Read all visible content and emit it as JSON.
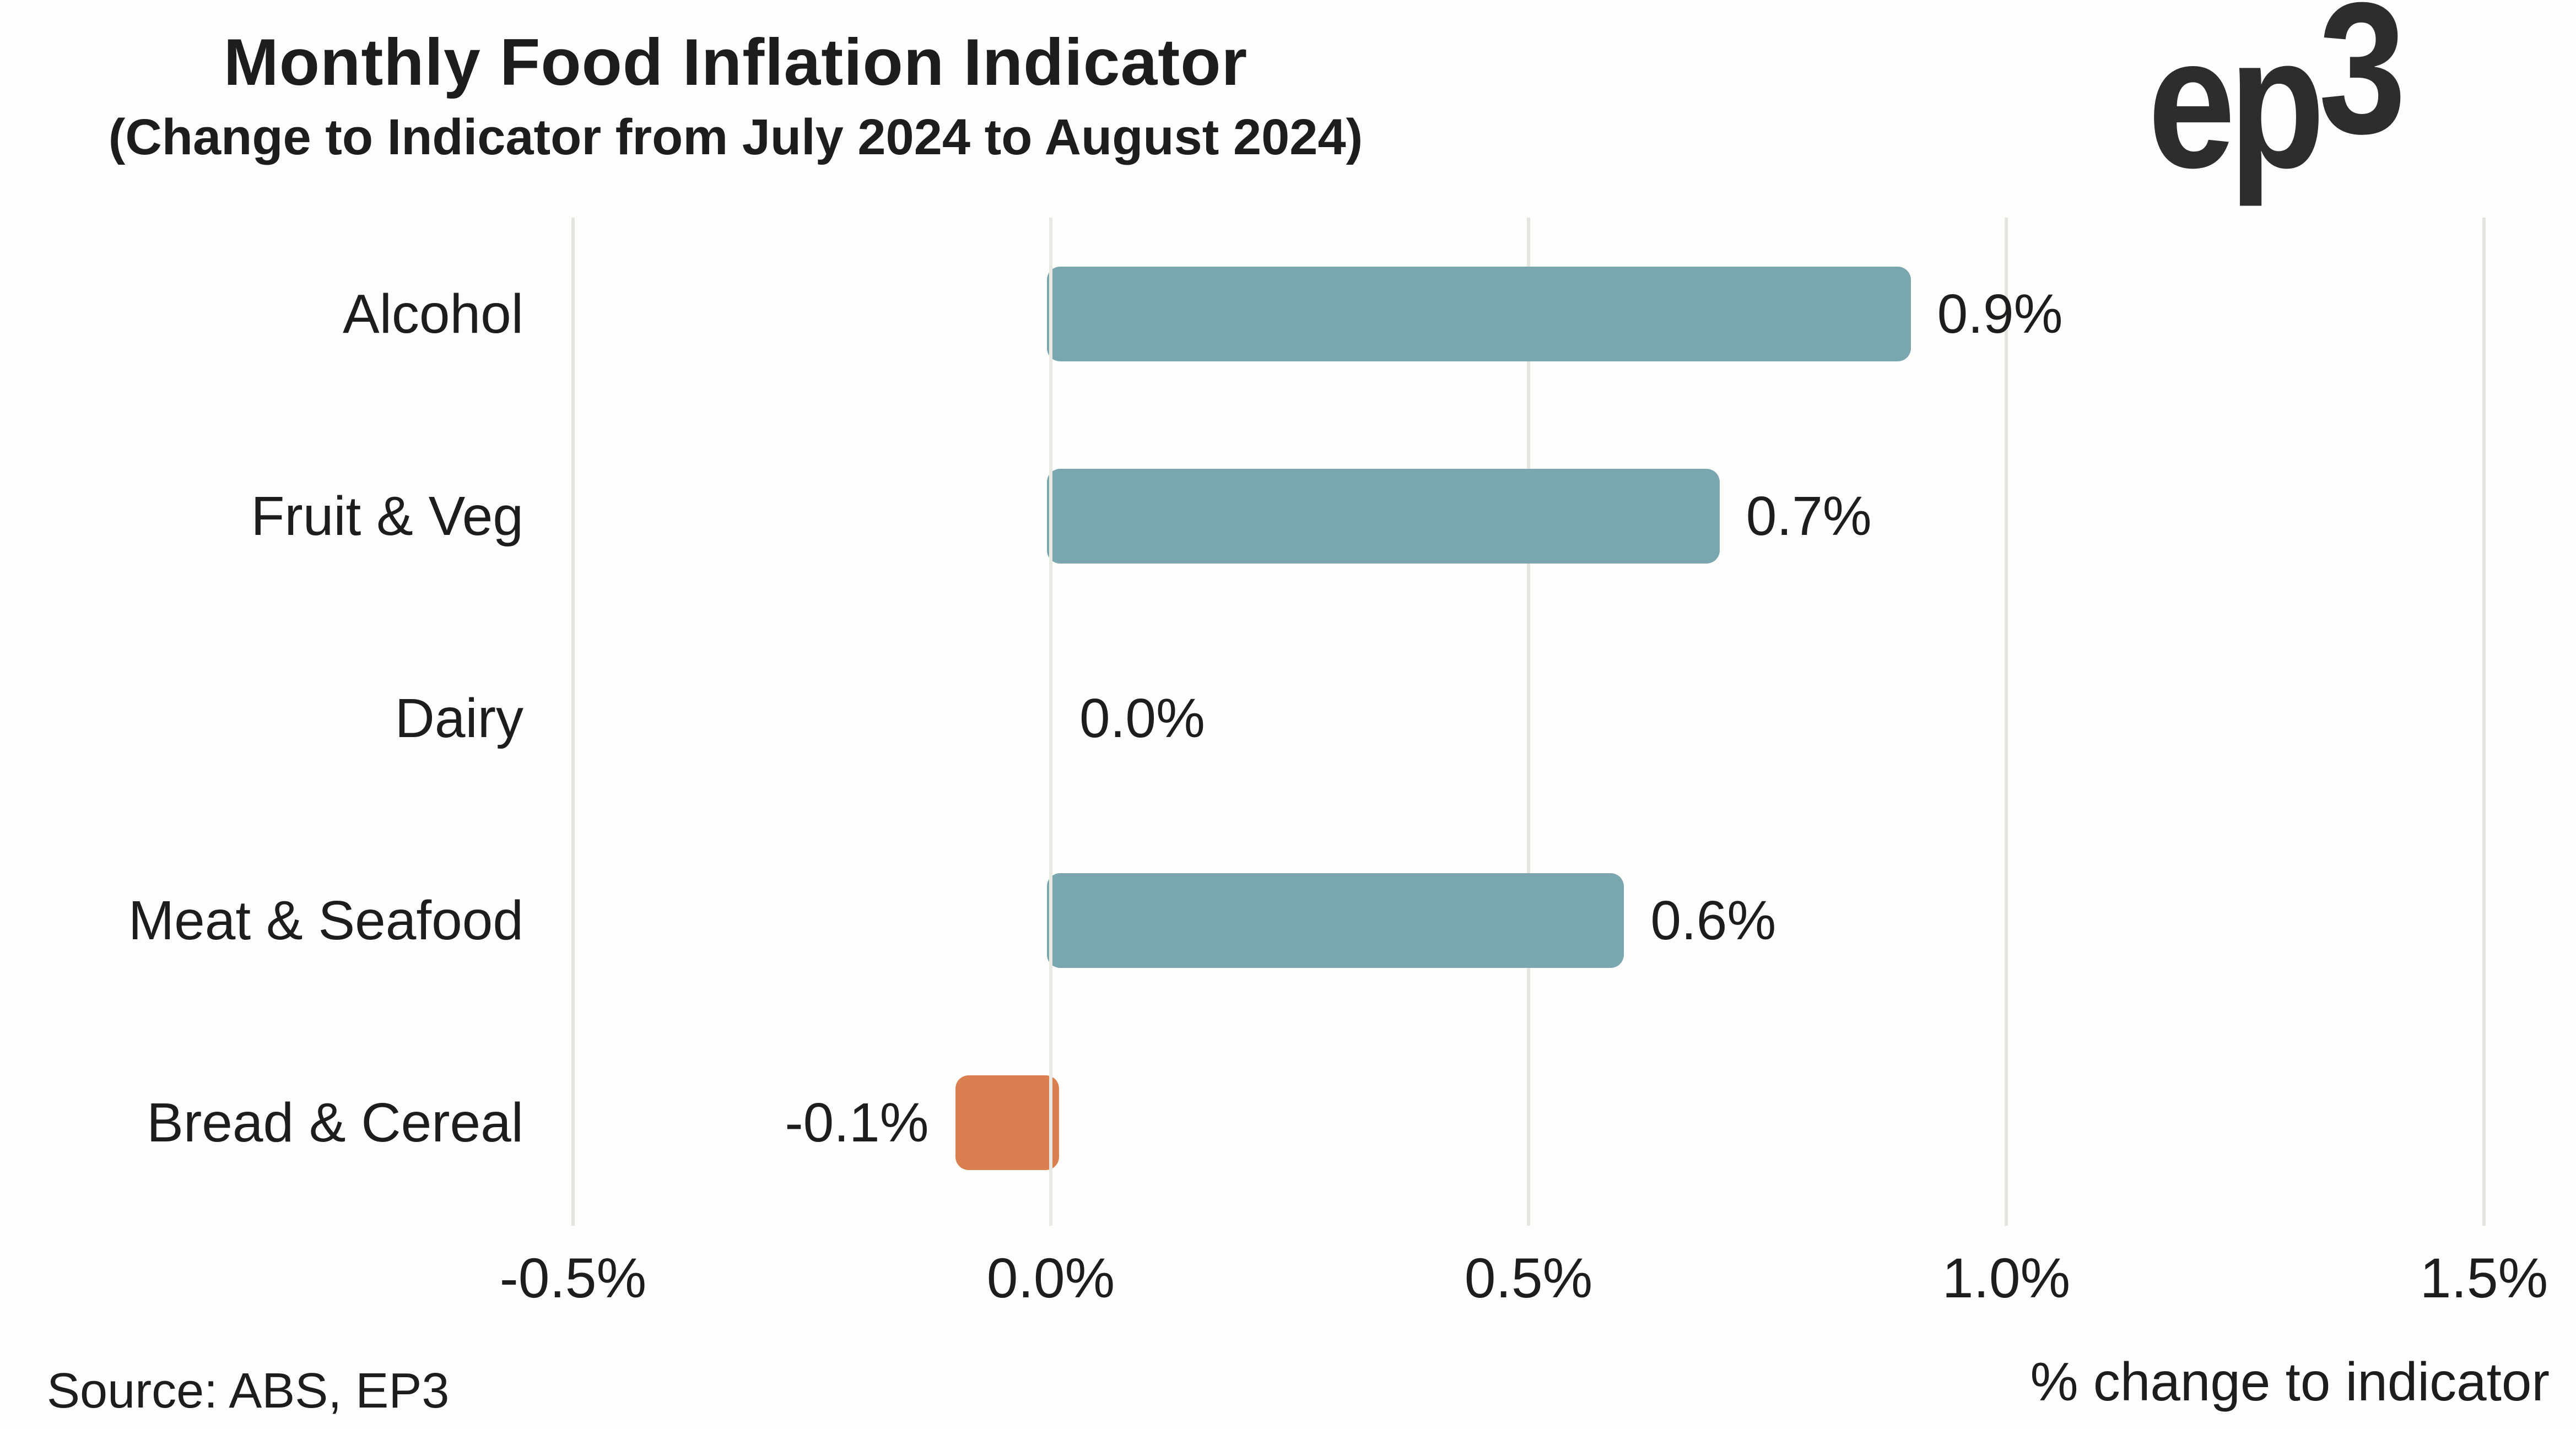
{
  "title": "Monthly Food Inflation Indicator",
  "subtitle": "(Change to Indicator from July 2024 to August 2024)",
  "logo": {
    "ep": "ep",
    "three": "3"
  },
  "source_note": "Source: ABS, EP3",
  "colors": {
    "positive_bar": "#7aa6af",
    "negative_bar": "#d97f50",
    "text": "#1d1d1d",
    "gridline": "#e5e5df",
    "background": "#fdfdfb",
    "logo": "#2d2d2d"
  },
  "chart_data": {
    "type": "bar",
    "orientation": "horizontal",
    "title": "Monthly Food Inflation Indicator",
    "subtitle": "(Change to Indicator from July 2024 to August 2024)",
    "categories": [
      "Alcohol",
      "Fruit & Veg",
      "Dairy",
      "Meat & Seafood",
      "Bread & Cereal"
    ],
    "values": [
      0.9,
      0.7,
      0.0,
      0.6,
      -0.1
    ],
    "value_labels": [
      "0.9%",
      "0.7%",
      "0.0%",
      "0.6%",
      "-0.1%"
    ],
    "xlabel": "% change to indicator",
    "ylabel": "",
    "xlim": [
      -0.5,
      1.5
    ],
    "x_ticks": [
      {
        "value": -0.5,
        "label": "-0.5%"
      },
      {
        "value": 0.0,
        "label": "0.0%"
      },
      {
        "value": 0.5,
        "label": "0.5%"
      },
      {
        "value": 1.0,
        "label": "1.0%"
      },
      {
        "value": 1.5,
        "label": "1.5%"
      }
    ],
    "grid": true,
    "legend": false
  }
}
